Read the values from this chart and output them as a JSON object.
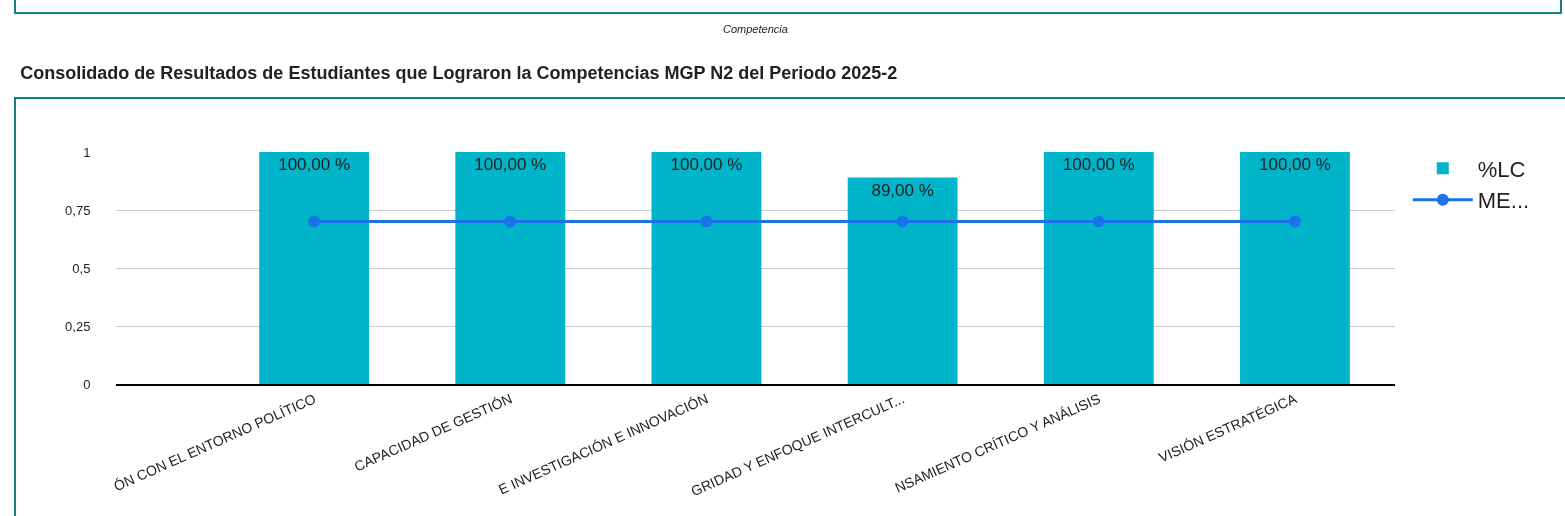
{
  "chart_data": {
    "type": "bar",
    "title": "Consolidado de Resultados de Estudiantes que Lograron la Competencias MGP N2 del Periodo 2025-2",
    "annotations": [
      "Competencia"
    ],
    "categories": [
      "ÓN CON EL ENTORNO POLÍTICO",
      "CAPACIDAD DE GESTIÓN",
      "E INVESTIGACIÓN E INNOVACIÓN",
      "GRIDAD Y ENFOQUE INTERCULT...",
      "NSAMIENTO CRÍTICO Y ANÁLISIS",
      "VISIÓN ESTRATÉGICA"
    ],
    "series": [
      {
        "name": "%LC",
        "color": "#00b4c9",
        "values": [
          1,
          1,
          1,
          0.89,
          1,
          1
        ],
        "value_labels": [
          "100,00 %",
          "100,00 %",
          "100,00 %",
          "89,00 %",
          "100,00 %",
          "100,00 %"
        ]
      },
      {
        "name": "ME...",
        "type": "line",
        "color": "#1a73e8",
        "values": [
          0.7,
          0.7,
          0.7,
          0.7,
          0.7,
          0.7
        ],
        "marker": "circle",
        "line_style": "solid"
      }
    ],
    "ylim": [
      0,
      1
    ],
    "yticks": [
      {
        "value": 0,
        "label": "0"
      },
      {
        "value": 0.25,
        "label": "0,25"
      },
      {
        "value": 0.5,
        "label": "0,5"
      },
      {
        "value": 0.75,
        "label": "0,75"
      },
      {
        "value": 1,
        "label": "1"
      }
    ],
    "grid": "y",
    "legend": "top right"
  }
}
